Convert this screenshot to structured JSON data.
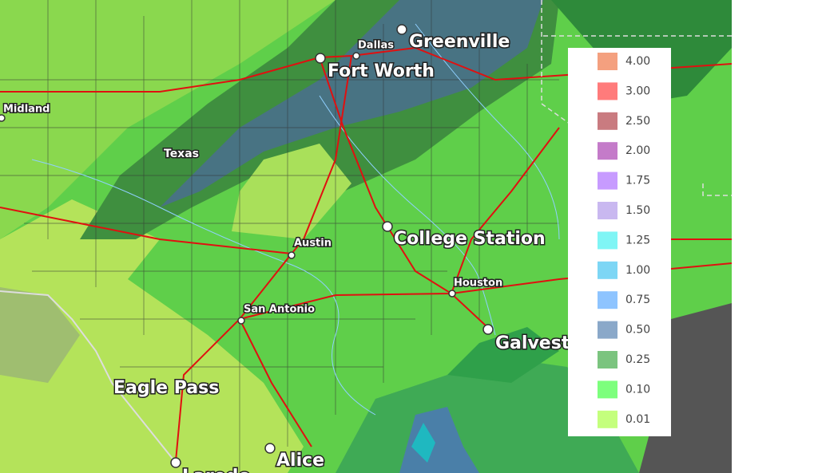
{
  "map": {
    "places": [
      {
        "text": "Dallas",
        "size": "small"
      },
      {
        "text": "Greenville",
        "size": "large"
      },
      {
        "text": "Fort Worth",
        "size": "large"
      },
      {
        "text": "Midland",
        "size": "small"
      },
      {
        "text": "Texas",
        "size": "region"
      },
      {
        "text": "Austin",
        "size": "small"
      },
      {
        "text": "College Station",
        "size": "large"
      },
      {
        "text": "Houston",
        "size": "small"
      },
      {
        "text": "San Antonio",
        "size": "small"
      },
      {
        "text": "Galveston",
        "size": "large"
      },
      {
        "text": "Eagle Pass",
        "size": "large"
      },
      {
        "text": "Alice",
        "size": "large"
      },
      {
        "text": "Laredo",
        "size": "large"
      }
    ]
  },
  "legend": {
    "items": [
      {
        "label": "4.00",
        "color": "#f4a07f"
      },
      {
        "label": "3.00",
        "color": "#ff7b7b"
      },
      {
        "label": "2.50",
        "color": "#c97b80"
      },
      {
        "label": "2.00",
        "color": "#c47bc9"
      },
      {
        "label": "1.75",
        "color": "#c79bff"
      },
      {
        "label": "1.50",
        "color": "#c9b8f0"
      },
      {
        "label": "1.25",
        "color": "#7ff5f5"
      },
      {
        "label": "1.00",
        "color": "#7dd6f5"
      },
      {
        "label": "0.75",
        "color": "#8ec4ff"
      },
      {
        "label": "0.50",
        "color": "#8aa8c9"
      },
      {
        "label": "0.25",
        "color": "#7bc47f"
      },
      {
        "label": "0.10",
        "color": "#7dff7d"
      },
      {
        "label": "0.01",
        "color": "#c4ff7d"
      }
    ]
  }
}
